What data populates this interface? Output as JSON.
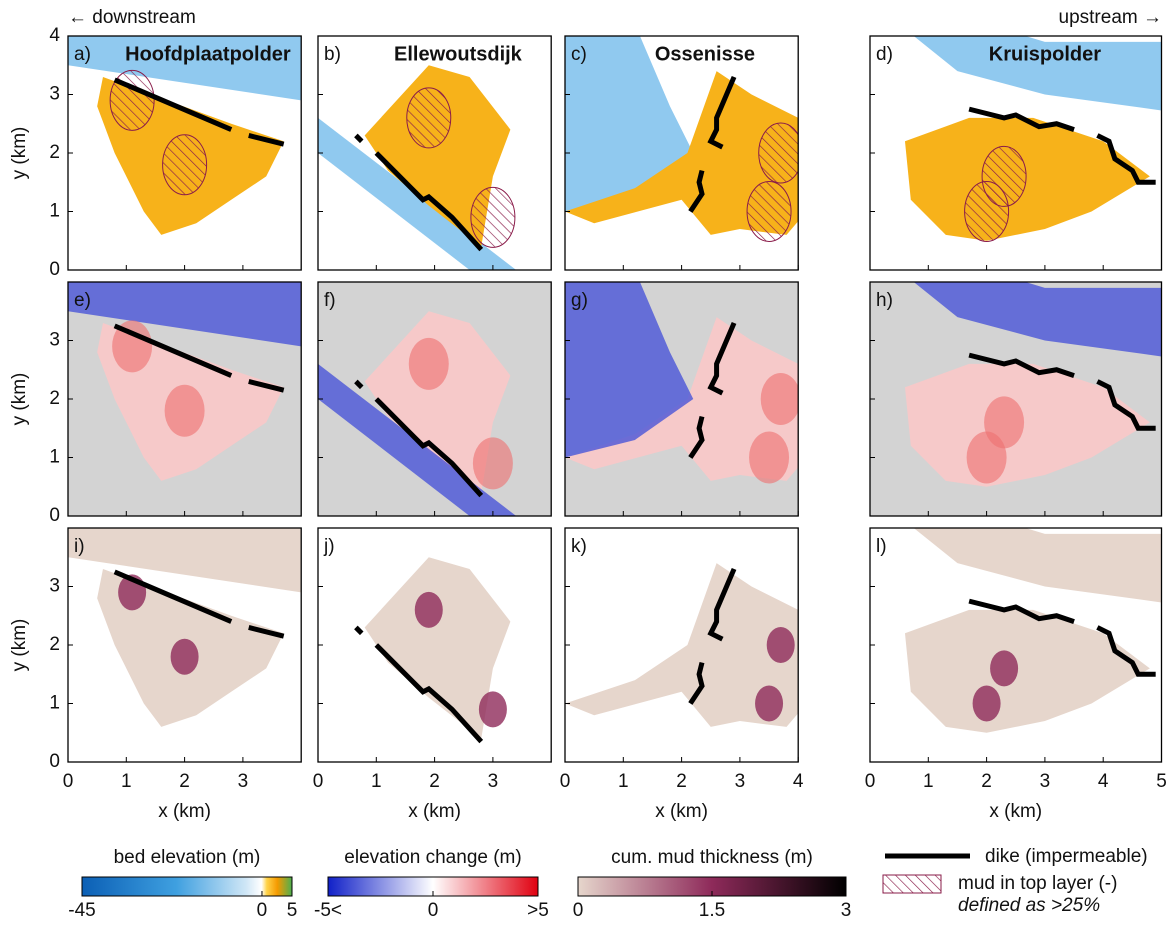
{
  "direction": {
    "left": "← downstream",
    "right": "upstream →"
  },
  "panels": [
    {
      "label": "a)",
      "title": "Hoofdplaatpolder"
    },
    {
      "label": "b)",
      "title": "Ellewoutsdijk"
    },
    {
      "label": "c)",
      "title": "Ossenisse"
    },
    {
      "label": "d)",
      "title": "Kruispolder"
    },
    {
      "label": "e)"
    },
    {
      "label": "f)"
    },
    {
      "label": "g)"
    },
    {
      "label": "h)"
    },
    {
      "label": "i)"
    },
    {
      "label": "j)"
    },
    {
      "label": "k)"
    },
    {
      "label": "l)"
    }
  ],
  "axes": {
    "xlabel": "x (km)",
    "ylabel": "y (km)",
    "ylim": [
      0,
      4
    ],
    "rows": [
      {
        "yticks": [
          0,
          1,
          2,
          3,
          4
        ]
      },
      {
        "yticks": [
          0,
          1,
          2,
          3
        ]
      },
      {
        "yticks": [
          0,
          1,
          2,
          3
        ]
      }
    ],
    "columns": [
      {
        "xlim": [
          0,
          4
        ],
        "xticks": [
          0,
          1,
          2,
          3
        ]
      },
      {
        "xlim": [
          0,
          4
        ],
        "xticks": [
          0,
          1,
          2,
          3
        ]
      },
      {
        "xlim": [
          0,
          4
        ],
        "xticks": [
          0,
          1,
          2,
          3,
          4
        ]
      },
      {
        "xlim": [
          0,
          5
        ],
        "xticks": [
          0,
          1,
          2,
          3,
          4,
          5
        ]
      }
    ]
  },
  "colorbars": [
    {
      "title": "bed elevation (m)",
      "range": [
        -45,
        5
      ],
      "ticks": [
        -45,
        0,
        5
      ]
    },
    {
      "title": "elevation change (m)",
      "range": [
        -5,
        5
      ],
      "ticks": [
        {
          "value": -5,
          "label": "-5<"
        },
        0,
        {
          "value": 5,
          "label": ">5"
        }
      ]
    },
    {
      "title": "cum. mud thickness (m)",
      "range": [
        0,
        3
      ],
      "ticks": [
        0,
        1.5,
        3
      ]
    }
  ],
  "legend": {
    "dike": "dike (impermeable)",
    "mud": "mud in top layer (-)",
    "mud_note": "defined as >25%"
  }
}
